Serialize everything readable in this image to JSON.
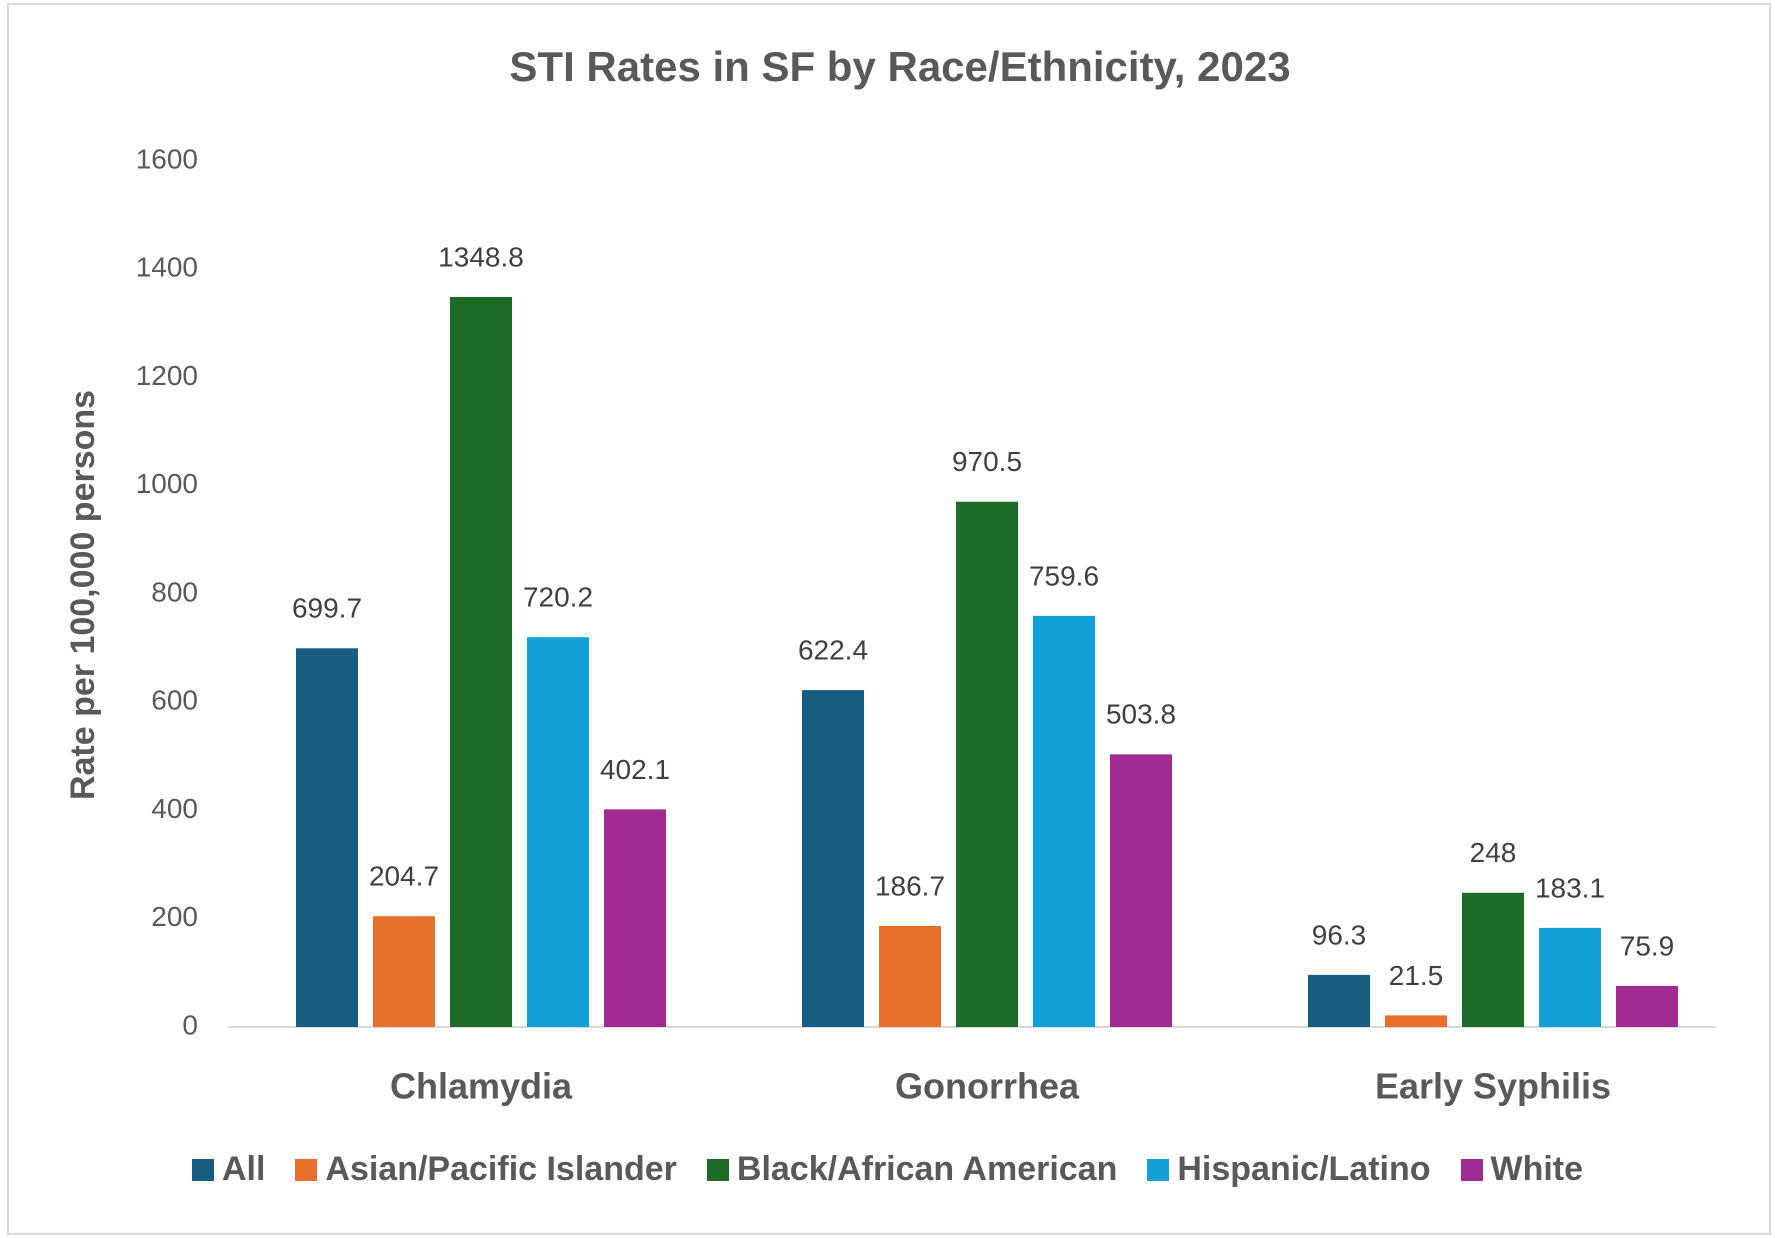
{
  "chart_data": {
    "type": "bar",
    "title": "STI Rates in SF by Race/Ethnicity,  2023",
    "y_label": "Rate per 100,000 persons",
    "categories": [
      "Chlamydia",
      "Gonorrhea",
      "Early Syphilis"
    ],
    "series": [
      {
        "name": "All",
        "color": "#175d80",
        "values": [
          699.7,
          622.4,
          96.3
        ]
      },
      {
        "name": "Asian/Pacific Islander",
        "color": "#e8702a",
        "values": [
          204.7,
          186.7,
          21.5
        ]
      },
      {
        "name": "Black/African American",
        "color": "#1e6b28",
        "values": [
          1348.8,
          970.5,
          248
        ]
      },
      {
        "name": "Hispanic/Latino",
        "color": "#12a0d8",
        "values": [
          720.2,
          759.6,
          183.1
        ]
      },
      {
        "name": "White",
        "color": "#a02b93",
        "values": [
          402.1,
          503.8,
          75.9
        ]
      }
    ],
    "ylim": [
      0,
      1600
    ],
    "yticks": [
      0,
      200,
      400,
      600,
      800,
      1000,
      1200,
      1400,
      1600
    ],
    "grid": false,
    "legend": "bottom"
  }
}
